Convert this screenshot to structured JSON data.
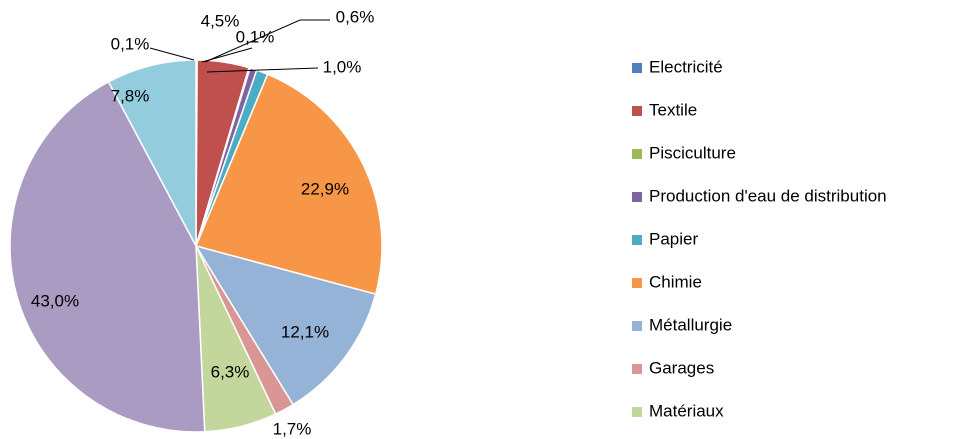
{
  "chart_data": {
    "type": "pie",
    "categories": [
      "Electricité",
      "Textile",
      "Pisciculture",
      "Production d'eau de distribution",
      "Papier",
      "Chimie",
      "Métallurgie",
      "Garages",
      "Matériaux",
      null,
      null
    ],
    "values": [
      0.1,
      4.5,
      0.1,
      0.6,
      1.0,
      22.9,
      12.1,
      1.7,
      6.3,
      43.0,
      7.8
    ],
    "value_labels": [
      "0,1%",
      "4,5%",
      "0,1%",
      "0,6%",
      "1,0%",
      "22,9%",
      "12,1%",
      "1,7%",
      "6,3%",
      "43,0%",
      "7,8%"
    ],
    "colors": [
      "#4f81bd",
      "#c0504d",
      "#9bbb59",
      "#8064a2",
      "#4bacc6",
      "#f79646",
      "#95b3d7",
      "#d99694",
      "#c3d69b",
      "#a99bc2",
      "#93cddd"
    ],
    "legend": "right"
  }
}
